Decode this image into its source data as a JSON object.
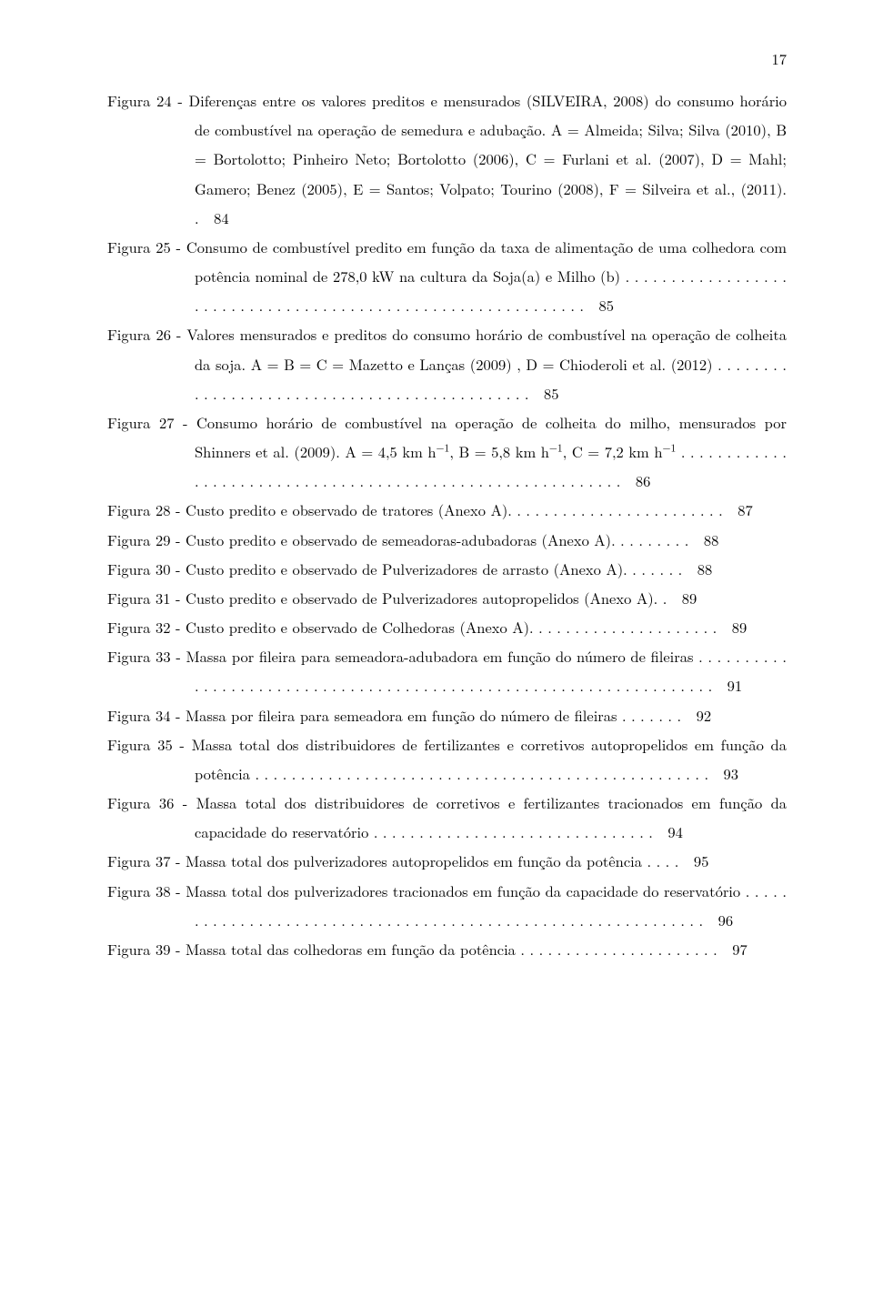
{
  "page_number": "17",
  "entries": [
    {
      "label": "Figura 24 -",
      "text": "Diferenças entre os valores preditos e mensurados (SILVEIRA, 2008) do consumo horário de combustível na operação de semedura e adubação. A = Almeida; Silva; Silva (2010), B = Bortolotto; Pinheiro Neto; Bortolotto (2006), C = Furlani et al. (2007), D = Mahl; Gamero; Benez (2005), E = Santos; Volpato; Tourino (2008), F = Silveira et al., (2011). .",
      "page": "84"
    },
    {
      "label": "Figura 25 -",
      "text": "Consumo de combustível predito em função da taxa de alimentação de uma colhedora com potência nominal de 278,0 kW na cultura da Soja(a) e Milho (b) . . . . . . . . . . . . . . . . . . . . . . . . . . . . . . . . . . . . . . . . . . . . . . . . . . . . . . . . . . . . .",
      "page": "85"
    },
    {
      "label": "Figura 26 -",
      "text": "Valores mensurados e preditos do consumo horário de combustível na operação de colheita da soja. A = B = C = Mazetto e Lanças (2009) , D = Chioderoli et al. (2012) . . . . . . . . . . . . . . . . . . . . . . . . . . . . . . . . . . . . . . . . . . . . .",
      "page": "85"
    },
    {
      "label": "Figura 27 -",
      "text": "Consumo horário de combustível na operação de colheita do milho, mensurados por Shinners et al. (2009). A = 4,5 km h⁻¹, B = 5,8 km h⁻¹, C = 7,2 km h⁻¹ . . . . . . . . . . . . . . . . . . . . . . . . . . . . . . . . . . . . . . . . . . . . . . . . . . . . . . . . . . .",
      "page": "86"
    },
    {
      "label": "Figura 28 -",
      "text": "Custo predito e observado de tratores (Anexo A). . . . . . . . . . . . . . . . . . . . . . . .",
      "page": "87"
    },
    {
      "label": "Figura 29 -",
      "text": "Custo predito e observado de semeadoras-adubadoras (Anexo A). . . . . . . . .",
      "page": "88"
    },
    {
      "label": "Figura 30 -",
      "text": "Custo predito e observado de Pulverizadores de arrasto (Anexo A). . . . . . .",
      "page": "88"
    },
    {
      "label": "Figura 31 -",
      "text": "Custo predito e observado de Pulverizadores autopropelidos (Anexo A). .",
      "page": "89"
    },
    {
      "label": "Figura 32 -",
      "text": "Custo predito e observado de Colhedoras (Anexo A). . . . . . . . . . . . . . . . . . . . .",
      "page": "89"
    },
    {
      "label": "Figura 33 -",
      "text": "Massa por fileira para semeadora-adubadora em função do número de fileiras . . . . . . . . . . . . . . . . . . . . . . . . . . . . . . . . . . . . . . . . . . . . . . . . . . . . . . . . . . . . . . . . . . .",
      "page": "91"
    },
    {
      "label": "Figura 34 -",
      "text": "Massa por fileira para semeadora em função do número de fileiras . . . . . . .",
      "page": "92"
    },
    {
      "label": "Figura 35 -",
      "text": "Massa total dos distribuidores de fertilizantes e corretivos autopropelidos em função da potência . . . . . . . . . . . . . . . . . . . . . . . . . . . . . . . . . . . . . . . . . . . . . . . . . .",
      "page": "93"
    },
    {
      "label": "Figura 36 -",
      "text": "Massa total dos distribuidores de corretivos e fertilizantes tracionados em função da capacidade do reservatório . . . . . . . . . . . . . . . . . . . . . . . . . . . . . . .",
      "page": "94"
    },
    {
      "label": "Figura 37 -",
      "text": "Massa total dos pulverizadores autopropelidos em função da potência . . . .",
      "page": "95"
    },
    {
      "label": "Figura 38 -",
      "text": "Massa total dos pulverizadores tracionados em função da capacidade do reservatório . . . . . . . . . . . . . . . . . . . . . . . . . . . . . . . . . . . . . . . . . . . . . . . . . . . . . . . . . . . . .",
      "page": "96"
    },
    {
      "label": "Figura 39 -",
      "text": "Massa total das colhedoras em função da potência . . . . . . . . . . . . . . . . . . . . . .",
      "page": "97"
    }
  ]
}
